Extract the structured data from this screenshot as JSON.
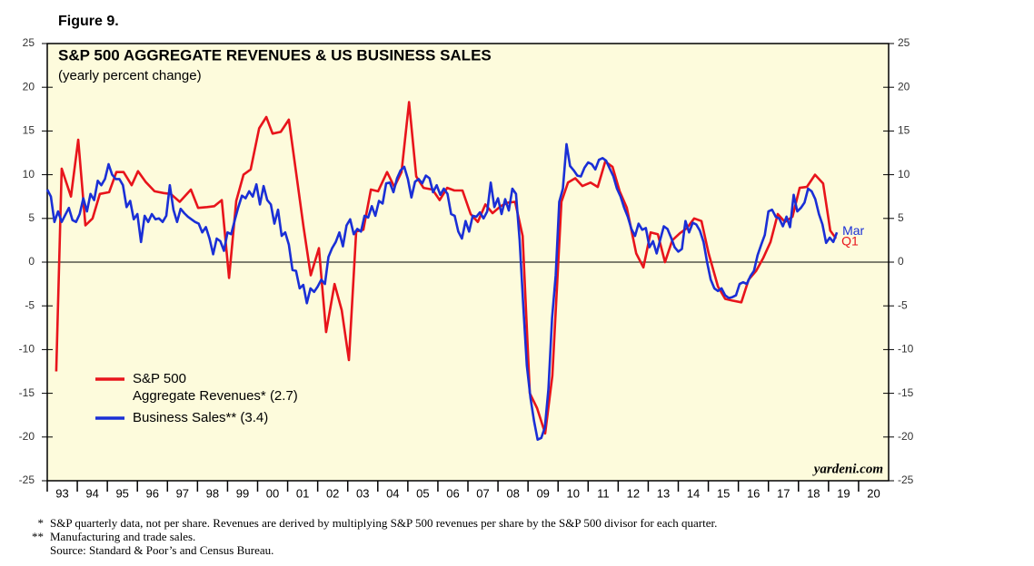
{
  "chart_data": {
    "type": "line",
    "figure_label": "Figure 9.",
    "title": "S&P 500 AGGREGATE REVENUES & US BUSINESS SALES",
    "subtitle": "(yearly percent change)",
    "source_mark": "yardeni.com",
    "background": "#fdfbdc",
    "xlim": [
      1993,
      2021
    ],
    "xticks": [
      {
        "value": 1993,
        "label": "93"
      },
      {
        "value": 1994,
        "label": "94"
      },
      {
        "value": 1995,
        "label": "95"
      },
      {
        "value": 1996,
        "label": "96"
      },
      {
        "value": 1997,
        "label": "97"
      },
      {
        "value": 1998,
        "label": "98"
      },
      {
        "value": 1999,
        "label": "99"
      },
      {
        "value": 2000,
        "label": "00"
      },
      {
        "value": 2001,
        "label": "01"
      },
      {
        "value": 2002,
        "label": "02"
      },
      {
        "value": 2003,
        "label": "03"
      },
      {
        "value": 2004,
        "label": "04"
      },
      {
        "value": 2005,
        "label": "05"
      },
      {
        "value": 2006,
        "label": "06"
      },
      {
        "value": 2007,
        "label": "07"
      },
      {
        "value": 2008,
        "label": "08"
      },
      {
        "value": 2009,
        "label": "09"
      },
      {
        "value": 2010,
        "label": "10"
      },
      {
        "value": 2011,
        "label": "11"
      },
      {
        "value": 2012,
        "label": "12"
      },
      {
        "value": 2013,
        "label": "13"
      },
      {
        "value": 2014,
        "label": "14"
      },
      {
        "value": 2015,
        "label": "15"
      },
      {
        "value": 2016,
        "label": "16"
      },
      {
        "value": 2017,
        "label": "17"
      },
      {
        "value": 2018,
        "label": "18"
      },
      {
        "value": 2019,
        "label": "19"
      },
      {
        "value": 2020,
        "label": "20"
      }
    ],
    "ylim": [
      -25,
      25
    ],
    "yticks": [
      -25,
      -20,
      -15,
      -10,
      -5,
      0,
      5,
      10,
      15,
      20,
      25
    ],
    "series": [
      {
        "name": "S&P 500\nAggregate Revenues* (2.7)",
        "color": "#e8141b",
        "end_label": "Q1",
        "x": [
          1993.3,
          1993.48,
          1993.79,
          1994.03,
          1994.27,
          1994.51,
          1994.75,
          1995.06,
          1995.3,
          1995.54,
          1995.81,
          1996.02,
          1996.27,
          1996.57,
          1996.87,
          1997.11,
          1997.41,
          1997.78,
          1998.02,
          1998.32,
          1998.56,
          1998.81,
          1999.05,
          1999.29,
          1999.53,
          1999.77,
          2000.05,
          2000.29,
          2000.5,
          2000.77,
          2001.04,
          2001.29,
          2001.53,
          2001.77,
          2002.04,
          2002.28,
          2002.56,
          2002.8,
          2003.04,
          2003.28,
          2003.52,
          2003.77,
          2004.01,
          2004.31,
          2004.55,
          2004.79,
          2005.04,
          2005.28,
          2005.52,
          2005.82,
          2006.06,
          2006.31,
          2006.55,
          2006.82,
          2007.09,
          2007.33,
          2007.58,
          2007.82,
          2008.09,
          2008.33,
          2008.57,
          2008.82,
          2009.06,
          2009.3,
          2009.57,
          2009.81,
          2010.11,
          2010.33,
          2010.57,
          2010.81,
          2011.08,
          2011.32,
          2011.57,
          2011.81,
          2012.05,
          2012.29,
          2012.6,
          2012.84,
          2013.08,
          2013.32,
          2013.56,
          2013.8,
          2014.05,
          2014.29,
          2014.53,
          2014.77,
          2015.01,
          2015.32,
          2015.56,
          2015.8,
          2016.1,
          2016.34,
          2016.59,
          2016.83,
          2017.07,
          2017.31,
          2017.55,
          2017.8,
          2018.04,
          2018.28,
          2018.55,
          2018.82,
          2019.06,
          2019.25
        ],
        "values": [
          -12.5,
          10.7,
          7.5,
          14,
          4.2,
          5,
          7.8,
          8,
          10.3,
          10.3,
          8.8,
          10.4,
          9.2,
          8.1,
          7.9,
          7.8,
          6.9,
          8.3,
          6.2,
          6.3,
          6.4,
          7.1,
          -1.8,
          7,
          10,
          10.6,
          15.3,
          16.6,
          14.7,
          14.9,
          16.3,
          10,
          4,
          -1.5,
          1.6,
          -8,
          -2.5,
          -5.5,
          -11.2,
          3.5,
          3.7,
          8.3,
          8.1,
          10.3,
          8.6,
          10.3,
          18.3,
          9.8,
          8.5,
          8.3,
          7.1,
          8.5,
          8.2,
          8.2,
          5.5,
          4.6,
          6.6,
          5.6,
          6.4,
          6.8,
          6.9,
          3,
          -15,
          -16.7,
          -19.6,
          -13,
          6.9,
          9.1,
          9.6,
          8.7,
          9.1,
          8.6,
          11.5,
          10.9,
          8.1,
          6.2,
          1,
          -0.6,
          3.4,
          3.2,
          0,
          2.5,
          3.3,
          3.9,
          5,
          4.7,
          1,
          -2.8,
          -4.2,
          -4.4,
          -4.6,
          -2,
          -1,
          0.5,
          2.3,
          5.5,
          4.6,
          5.2,
          8.5,
          8.6,
          10,
          9,
          3.6,
          2.7
        ]
      },
      {
        "name": "Business Sales** (3.4)",
        "color": "#1a2fd6",
        "end_label": "Mar",
        "x": [
          1993.0,
          1993.12,
          1993.24,
          1993.36,
          1993.48,
          1993.6,
          1993.72,
          1993.84,
          1993.96,
          1994.08,
          1994.2,
          1994.32,
          1994.44,
          1994.56,
          1994.68,
          1994.8,
          1994.92,
          1995.04,
          1995.16,
          1995.28,
          1995.4,
          1995.52,
          1995.64,
          1995.76,
          1995.88,
          1996.0,
          1996.12,
          1996.24,
          1996.36,
          1996.48,
          1996.6,
          1996.72,
          1996.84,
          1996.96,
          1997.08,
          1997.2,
          1997.32,
          1997.44,
          1997.56,
          1997.68,
          1997.8,
          1997.92,
          1998.04,
          1998.16,
          1998.28,
          1998.4,
          1998.52,
          1998.64,
          1998.76,
          1998.88,
          1999.0,
          1999.12,
          1999.24,
          1999.36,
          1999.48,
          1999.6,
          1999.72,
          1999.84,
          1999.96,
          2000.08,
          2000.2,
          2000.32,
          2000.44,
          2000.56,
          2000.68,
          2000.8,
          2000.92,
          2001.04,
          2001.16,
          2001.28,
          2001.4,
          2001.52,
          2001.64,
          2001.76,
          2001.88,
          2002.0,
          2002.12,
          2002.24,
          2002.36,
          2002.48,
          2002.6,
          2002.72,
          2002.84,
          2002.96,
          2003.08,
          2003.2,
          2003.32,
          2003.44,
          2003.56,
          2003.68,
          2003.8,
          2003.92,
          2004.04,
          2004.16,
          2004.28,
          2004.4,
          2004.52,
          2004.64,
          2004.76,
          2004.88,
          2005.0,
          2005.12,
          2005.24,
          2005.36,
          2005.48,
          2005.6,
          2005.72,
          2005.84,
          2005.96,
          2006.08,
          2006.2,
          2006.32,
          2006.44,
          2006.56,
          2006.68,
          2006.8,
          2006.92,
          2007.04,
          2007.16,
          2007.28,
          2007.4,
          2007.52,
          2007.64,
          2007.76,
          2007.88,
          2008.0,
          2008.12,
          2008.24,
          2008.36,
          2008.48,
          2008.6,
          2008.72,
          2008.84,
          2008.96,
          2009.08,
          2009.2,
          2009.32,
          2009.44,
          2009.56,
          2009.68,
          2009.8,
          2009.92,
          2010.04,
          2010.16,
          2010.28,
          2010.4,
          2010.52,
          2010.64,
          2010.76,
          2010.88,
          2011.0,
          2011.12,
          2011.24,
          2011.36,
          2011.48,
          2011.6,
          2011.72,
          2011.84,
          2011.96,
          2012.08,
          2012.2,
          2012.32,
          2012.44,
          2012.56,
          2012.68,
          2012.8,
          2012.92,
          2013.04,
          2013.16,
          2013.28,
          2013.4,
          2013.52,
          2013.64,
          2013.76,
          2013.88,
          2014.0,
          2014.12,
          2014.24,
          2014.36,
          2014.48,
          2014.6,
          2014.72,
          2014.84,
          2014.96,
          2015.08,
          2015.2,
          2015.32,
          2015.44,
          2015.56,
          2015.68,
          2015.8,
          2015.92,
          2016.04,
          2016.16,
          2016.28,
          2016.4,
          2016.52,
          2016.64,
          2016.76,
          2016.88,
          2017.0,
          2017.12,
          2017.24,
          2017.36,
          2017.48,
          2017.6,
          2017.72,
          2017.84,
          2017.96,
          2018.08,
          2018.2,
          2018.32,
          2018.44,
          2018.56,
          2018.68,
          2018.8,
          2018.92,
          2019.04,
          2019.16,
          2019.28
        ],
        "values": [
          8.3,
          7.5,
          4.6,
          5.8,
          4.6,
          5.4,
          6.2,
          4.8,
          4.6,
          5.5,
          7.3,
          5.8,
          7.8,
          7.1,
          9.3,
          8.8,
          9.5,
          11.2,
          10.0,
          9.5,
          9.5,
          8.8,
          6.3,
          7.0,
          4.9,
          5.5,
          2.3,
          5.3,
          4.6,
          5.5,
          4.9,
          5.0,
          4.6,
          5.3,
          8.8,
          6.0,
          4.6,
          6.1,
          5.6,
          5.2,
          4.9,
          4.6,
          4.4,
          3.4,
          4.0,
          2.7,
          0.9,
          2.7,
          2.4,
          1.3,
          3.4,
          3.2,
          4.8,
          6.3,
          7.6,
          7.3,
          8.1,
          7.5,
          8.9,
          6.6,
          8.7,
          7.1,
          6.6,
          4.4,
          6.0,
          3.0,
          3.4,
          2.0,
          -0.9,
          -1.0,
          -3.0,
          -2.6,
          -4.7,
          -3.0,
          -3.4,
          -2.8,
          -2.0,
          -2.5,
          0.6,
          1.6,
          2.3,
          3.4,
          1.8,
          4.2,
          4.9,
          3.2,
          3.8,
          3.5,
          5.3,
          5.1,
          6.4,
          5.3,
          7.0,
          6.7,
          9.0,
          9.1,
          8.0,
          9.6,
          10.5,
          10.9,
          9.5,
          7.4,
          9.2,
          9.5,
          9.0,
          9.9,
          9.6,
          8.0,
          8.8,
          7.7,
          8.4,
          7.8,
          5.5,
          5.3,
          3.5,
          2.7,
          4.7,
          3.5,
          5.3,
          5.2,
          5.7,
          5.0,
          5.8,
          9.1,
          6.3,
          7.3,
          5.5,
          7.2,
          5.9,
          8.4,
          7.8,
          2.5,
          -5.0,
          -11.8,
          -15.5,
          -18.2,
          -20.3,
          -20.1,
          -18.9,
          -14.5,
          -6.4,
          -1.5,
          6.9,
          8.4,
          13.5,
          11.0,
          10.5,
          9.9,
          9.8,
          10.8,
          11.4,
          11.2,
          10.6,
          11.7,
          11.9,
          11.6,
          10.7,
          9.8,
          8.4,
          7.5,
          6.2,
          5.2,
          3.8,
          3.0,
          4.4,
          3.7,
          3.9,
          1.7,
          2.4,
          1.0,
          2.6,
          4.1,
          3.8,
          2.8,
          1.7,
          1.2,
          1.5,
          4.7,
          3.4,
          4.5,
          4.3,
          3.6,
          2.3,
          0.0,
          -2.0,
          -3.0,
          -3.3,
          -3.0,
          -3.8,
          -4.1,
          -4.0,
          -3.8,
          -2.5,
          -2.3,
          -2.5,
          -1.6,
          -1.0,
          0.8,
          2.0,
          3.1,
          5.8,
          6.0,
          5.2,
          5.0,
          4.1,
          5.2,
          4.0,
          7.7,
          5.8,
          6.2,
          6.8,
          8.4,
          8.1,
          7.2,
          5.5,
          4.3,
          2.2,
          2.8,
          2.3,
          3.4
        ]
      }
    ],
    "footnotes": [
      {
        "marker": "*",
        "text": "S&P quarterly data, not per share. Revenues are derived by multiplying S&P 500 revenues per share by the S&P 500 divisor for each quarter."
      },
      {
        "marker": "**",
        "text": "Manufacturing and trade sales."
      },
      {
        "text": "Source: Standard & Poor’s and Census Bureau."
      }
    ]
  }
}
